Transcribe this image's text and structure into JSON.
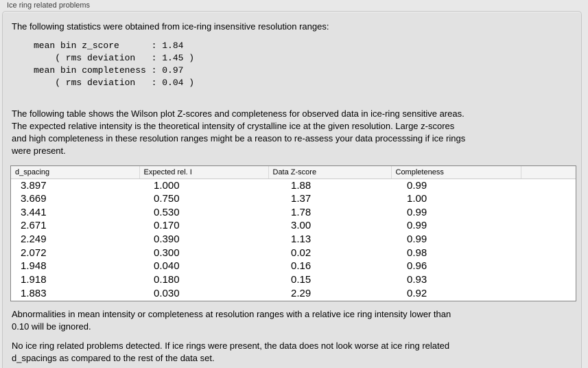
{
  "panel": {
    "title": "Ice ring related problems",
    "stats_intro": "The following statistics were obtained from ice-ring insensitive resolution ranges:",
    "stats_block": "mean bin z_score      : 1.84\n    ( rms deviation   : 1.45 )\nmean bin completeness : 0.97\n    ( rms deviation   : 0.04 )",
    "table_description": "The following table shows the Wilson plot Z-scores and completeness for observed data in ice-ring sensitive areas.\nThe expected relative intensity is the theoretical intensity of crystalline ice at the given resolution. Large z-scores\nand high completeness in these resolution ranges might be a reason to re-assess your data processsing if ice rings\nwere present.",
    "ignore_note": "Abnormalities in mean intensity or completeness at resolution ranges with a relative ice ring intensity lower than\n0.10 will be ignored.",
    "conclusion": "No ice ring related problems detected. If ice rings were present, the data does not look worse at ice ring related\nd_spacings as compared to the rest of the data set."
  },
  "table": {
    "columns": [
      "d_spacing",
      "Expected rel. I",
      "Data Z-score",
      "Completeness",
      ""
    ],
    "rows": [
      [
        "3.897",
        "1.000",
        "1.88",
        "0.99"
      ],
      [
        "3.669",
        "0.750",
        "1.37",
        "1.00"
      ],
      [
        "3.441",
        "0.530",
        "1.78",
        "0.99"
      ],
      [
        "2.671",
        "0.170",
        "3.00",
        "0.99"
      ],
      [
        "2.249",
        "0.390",
        "1.13",
        "0.99"
      ],
      [
        "2.072",
        "0.300",
        "0.02",
        "0.98"
      ],
      [
        "1.948",
        "0.040",
        "0.16",
        "0.96"
      ],
      [
        "1.918",
        "0.180",
        "0.15",
        "0.93"
      ],
      [
        "1.883",
        "0.030",
        "2.29",
        "0.92"
      ]
    ]
  },
  "colors": {
    "page_bg": "#e8e8e8",
    "panel_bg": "#e2e2e2",
    "panel_border": "#c6c6c6",
    "table_border": "#848484",
    "header_bg": "#f4f4f4",
    "text": "#000000"
  }
}
